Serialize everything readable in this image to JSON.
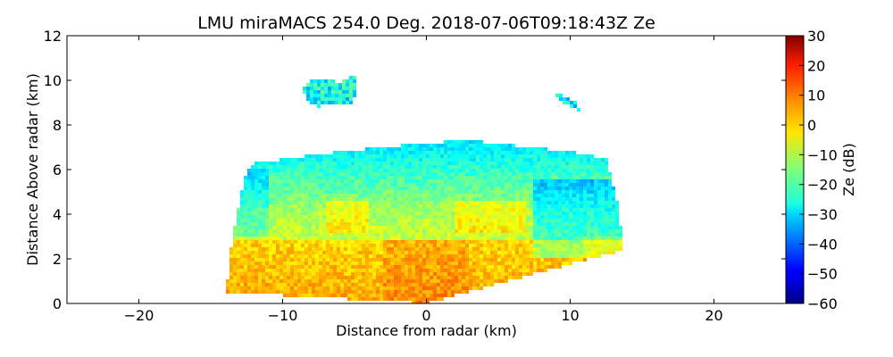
{
  "chart_data": {
    "type": "heatmap",
    "title": "LMU miraMACS 254.0 Deg. 2018-07-06T09:18:43Z  Ze",
    "xlabel": "Distance from radar (km)",
    "ylabel": "Distance Above radar  (km)",
    "xlim": [
      -25,
      25
    ],
    "ylim": [
      0,
      12
    ],
    "xticks": [
      -20,
      -10,
      0,
      10,
      20
    ],
    "xtick_labels": [
      "−20",
      "−10",
      "0",
      "10",
      "20"
    ],
    "yticks": [
      0,
      2,
      4,
      6,
      8,
      10,
      12
    ],
    "ytick_labels": [
      "0",
      "2",
      "4",
      "6",
      "8",
      "10",
      "12"
    ],
    "colorbar": {
      "label": "Ze (dB)",
      "range": [
        -60,
        30
      ],
      "colormap": "jet",
      "ticks": [
        -60,
        -50,
        -40,
        -30,
        -20,
        -10,
        0,
        10,
        20,
        30
      ],
      "tick_labels": [
        "−60",
        "−50",
        "−40",
        "−30",
        "−20",
        "−10",
        "0",
        "10",
        "20",
        "30"
      ]
    },
    "regions": [
      {
        "name": "main-echo",
        "description": "scan sector",
        "boundary_km": [
          [
            -13.9,
            0.5
          ],
          [
            -13.5,
            3
          ],
          [
            -12.5,
            6
          ],
          [
            -12,
            6.3
          ],
          [
            -6,
            6.8
          ],
          [
            0,
            7.2
          ],
          [
            3,
            7.3
          ],
          [
            6,
            7.1
          ],
          [
            10,
            6.8
          ],
          [
            12.5,
            6.5
          ],
          [
            13.3,
            4.5
          ],
          [
            13.7,
            2.4
          ],
          [
            0,
            0
          ],
          [
            -13.9,
            0.5
          ]
        ],
        "ze_range_db": [
          -35,
          10
        ]
      },
      {
        "name": "upper-cloud-left",
        "description": "isolated cloud",
        "boundary_km": [
          [
            -8.6,
            9.6
          ],
          [
            -8.0,
            10.0
          ],
          [
            -7.2,
            10.1
          ],
          [
            -6.0,
            9.9
          ],
          [
            -5.0,
            10.2
          ],
          [
            -4.8,
            9.5
          ],
          [
            -5.2,
            8.9
          ],
          [
            -6.2,
            9.0
          ],
          [
            -7.5,
            8.8
          ],
          [
            -8.3,
            9.1
          ]
        ],
        "ze_range_db": [
          -35,
          -15
        ]
      },
      {
        "name": "upper-cloud-right",
        "description": "isolated cloud",
        "boundary_km": [
          [
            9.0,
            9.4
          ],
          [
            9.7,
            9.3
          ],
          [
            10.4,
            9.0
          ],
          [
            10.8,
            8.6
          ],
          [
            10.5,
            8.7
          ],
          [
            9.8,
            8.9
          ],
          [
            9.2,
            9.1
          ]
        ],
        "ze_range_db": [
          -35,
          -20
        ]
      }
    ]
  }
}
